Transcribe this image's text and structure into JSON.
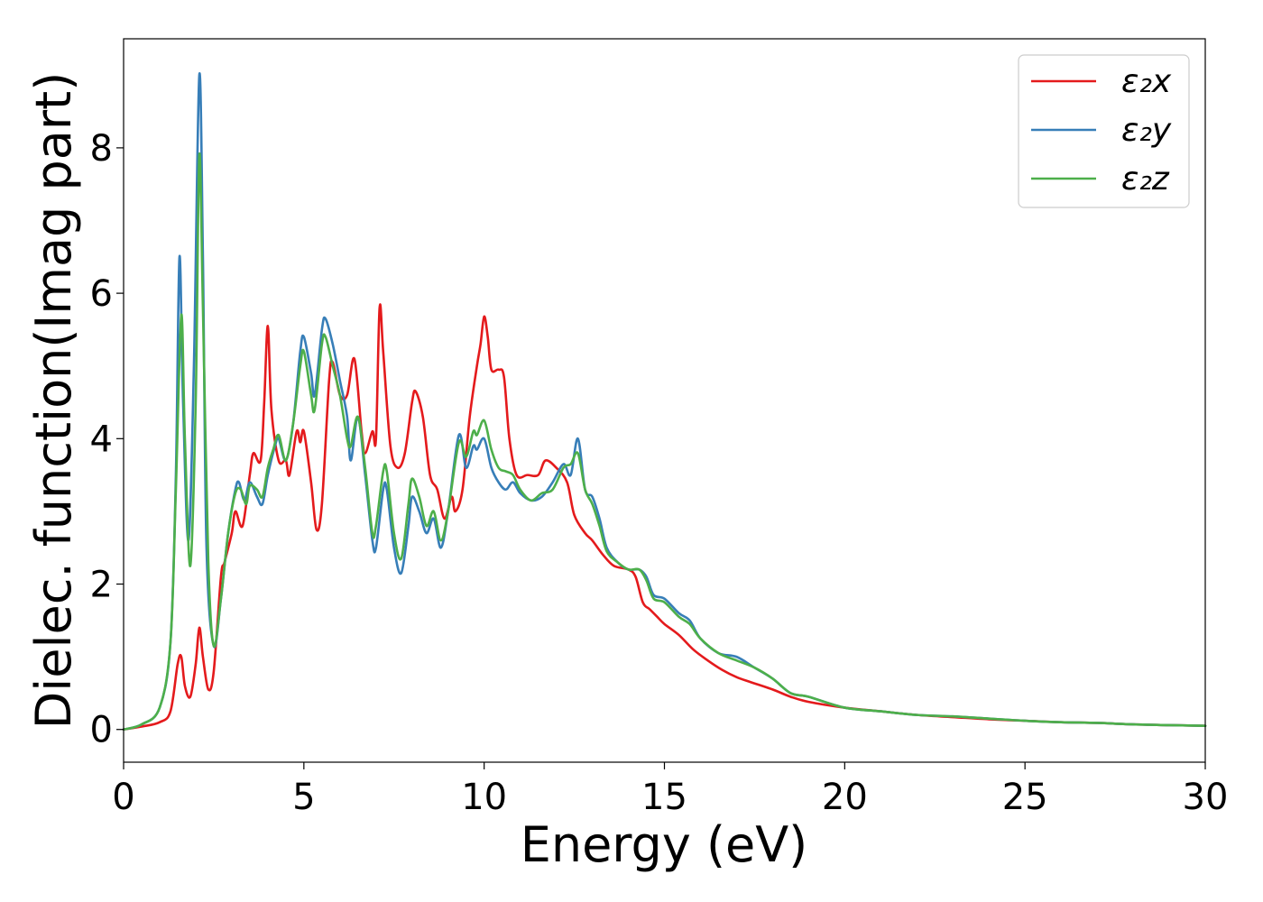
{
  "chart_data": {
    "type": "line",
    "title": "",
    "xlabel": "Energy (eV)",
    "ylabel": "Dielec. function(Imag part)",
    "xlim": [
      0,
      30
    ],
    "ylim": [
      -0.45,
      9.5
    ],
    "xticks": [
      0,
      5,
      10,
      15,
      20,
      25,
      30
    ],
    "yticks": [
      0,
      2,
      4,
      6,
      8
    ],
    "xtick_labels": [
      "0",
      "5",
      "10",
      "15",
      "20",
      "25",
      "30"
    ],
    "ytick_labels": [
      "0",
      "2",
      "4",
      "6",
      "8"
    ],
    "grid": false,
    "legend_position": "top-right",
    "series": [
      {
        "name": "ε₂x",
        "color": "#e41a1c",
        "points": [
          [
            0,
            0
          ],
          [
            0.5,
            0.04
          ],
          [
            1.0,
            0.1
          ],
          [
            1.3,
            0.25
          ],
          [
            1.5,
            0.9
          ],
          [
            1.6,
            1.0
          ],
          [
            1.7,
            0.6
          ],
          [
            1.85,
            0.45
          ],
          [
            2.0,
            0.9
          ],
          [
            2.1,
            1.4
          ],
          [
            2.2,
            1.0
          ],
          [
            2.35,
            0.55
          ],
          [
            2.5,
            0.8
          ],
          [
            2.7,
            2.1
          ],
          [
            2.8,
            2.3
          ],
          [
            3.0,
            2.7
          ],
          [
            3.1,
            3.0
          ],
          [
            3.3,
            2.8
          ],
          [
            3.5,
            3.5
          ],
          [
            3.6,
            3.8
          ],
          [
            3.8,
            3.7
          ],
          [
            3.9,
            4.5
          ],
          [
            4.0,
            5.55
          ],
          [
            4.1,
            4.4
          ],
          [
            4.3,
            3.7
          ],
          [
            4.5,
            3.7
          ],
          [
            4.6,
            3.5
          ],
          [
            4.8,
            4.1
          ],
          [
            4.9,
            3.95
          ],
          [
            5.0,
            4.1
          ],
          [
            5.2,
            3.4
          ],
          [
            5.35,
            2.75
          ],
          [
            5.5,
            3.1
          ],
          [
            5.7,
            4.8
          ],
          [
            5.8,
            5.05
          ],
          [
            6.0,
            4.6
          ],
          [
            6.2,
            4.6
          ],
          [
            6.4,
            5.1
          ],
          [
            6.6,
            4.1
          ],
          [
            6.7,
            3.8
          ],
          [
            6.9,
            4.1
          ],
          [
            7.0,
            4.0
          ],
          [
            7.1,
            5.8
          ],
          [
            7.2,
            5.2
          ],
          [
            7.4,
            3.9
          ],
          [
            7.6,
            3.6
          ],
          [
            7.8,
            3.8
          ],
          [
            8.0,
            4.5
          ],
          [
            8.1,
            4.65
          ],
          [
            8.3,
            4.3
          ],
          [
            8.5,
            3.5
          ],
          [
            8.7,
            3.3
          ],
          [
            8.9,
            2.9
          ],
          [
            9.1,
            3.2
          ],
          [
            9.2,
            3.0
          ],
          [
            9.4,
            3.3
          ],
          [
            9.6,
            4.3
          ],
          [
            9.8,
            5.0
          ],
          [
            9.9,
            5.3
          ],
          [
            10.0,
            5.68
          ],
          [
            10.1,
            5.4
          ],
          [
            10.2,
            4.95
          ],
          [
            10.4,
            4.95
          ],
          [
            10.55,
            4.85
          ],
          [
            10.7,
            4.0
          ],
          [
            10.9,
            3.5
          ],
          [
            11.2,
            3.5
          ],
          [
            11.5,
            3.5
          ],
          [
            11.7,
            3.7
          ],
          [
            12.0,
            3.6
          ],
          [
            12.3,
            3.4
          ],
          [
            12.5,
            2.95
          ],
          [
            12.8,
            2.7
          ],
          [
            13.0,
            2.6
          ],
          [
            13.3,
            2.4
          ],
          [
            13.6,
            2.25
          ],
          [
            14.0,
            2.2
          ],
          [
            14.2,
            2.1
          ],
          [
            14.4,
            1.75
          ],
          [
            14.6,
            1.65
          ],
          [
            14.8,
            1.55
          ],
          [
            15.0,
            1.45
          ],
          [
            15.4,
            1.3
          ],
          [
            15.8,
            1.1
          ],
          [
            16.2,
            0.95
          ],
          [
            16.6,
            0.82
          ],
          [
            17.0,
            0.72
          ],
          [
            17.4,
            0.65
          ],
          [
            18.0,
            0.55
          ],
          [
            18.5,
            0.45
          ],
          [
            19.0,
            0.38
          ],
          [
            20.0,
            0.3
          ],
          [
            21.0,
            0.25
          ],
          [
            22.0,
            0.2
          ],
          [
            23.0,
            0.17
          ],
          [
            24.0,
            0.14
          ],
          [
            25.0,
            0.12
          ],
          [
            26.0,
            0.1
          ],
          [
            27.0,
            0.09
          ],
          [
            28.0,
            0.07
          ],
          [
            29.0,
            0.06
          ],
          [
            30.0,
            0.05
          ]
        ]
      },
      {
        "name": "ε₂y",
        "color": "#377eb8",
        "points": [
          [
            0,
            0
          ],
          [
            0.5,
            0.07
          ],
          [
            1.0,
            0.3
          ],
          [
            1.3,
            1.2
          ],
          [
            1.45,
            3.5
          ],
          [
            1.55,
            6.5
          ],
          [
            1.65,
            4.5
          ],
          [
            1.8,
            2.6
          ],
          [
            1.95,
            5.0
          ],
          [
            2.1,
            9.0
          ],
          [
            2.2,
            6.5
          ],
          [
            2.3,
            2.5
          ],
          [
            2.5,
            1.15
          ],
          [
            2.7,
            1.8
          ],
          [
            2.9,
            2.7
          ],
          [
            3.1,
            3.3
          ],
          [
            3.2,
            3.4
          ],
          [
            3.35,
            3.15
          ],
          [
            3.5,
            3.4
          ],
          [
            3.7,
            3.2
          ],
          [
            3.85,
            3.1
          ],
          [
            4.0,
            3.5
          ],
          [
            4.2,
            3.9
          ],
          [
            4.3,
            4.0
          ],
          [
            4.5,
            3.7
          ],
          [
            4.7,
            4.2
          ],
          [
            4.9,
            5.2
          ],
          [
            5.0,
            5.4
          ],
          [
            5.2,
            4.9
          ],
          [
            5.3,
            4.6
          ],
          [
            5.5,
            5.5
          ],
          [
            5.6,
            5.65
          ],
          [
            5.8,
            5.3
          ],
          [
            6.0,
            4.8
          ],
          [
            6.2,
            4.3
          ],
          [
            6.3,
            3.7
          ],
          [
            6.5,
            4.3
          ],
          [
            6.7,
            3.5
          ],
          [
            6.9,
            2.6
          ],
          [
            7.0,
            2.5
          ],
          [
            7.2,
            3.3
          ],
          [
            7.3,
            3.3
          ],
          [
            7.5,
            2.5
          ],
          [
            7.7,
            2.15
          ],
          [
            7.9,
            2.8
          ],
          [
            8.0,
            3.2
          ],
          [
            8.2,
            3.0
          ],
          [
            8.4,
            2.7
          ],
          [
            8.6,
            2.9
          ],
          [
            8.8,
            2.5
          ],
          [
            9.0,
            3.0
          ],
          [
            9.3,
            4.05
          ],
          [
            9.5,
            3.6
          ],
          [
            9.7,
            3.9
          ],
          [
            9.8,
            3.85
          ],
          [
            10.0,
            4.0
          ],
          [
            10.2,
            3.6
          ],
          [
            10.4,
            3.4
          ],
          [
            10.6,
            3.3
          ],
          [
            10.8,
            3.4
          ],
          [
            11.0,
            3.25
          ],
          [
            11.3,
            3.15
          ],
          [
            11.6,
            3.2
          ],
          [
            11.9,
            3.4
          ],
          [
            12.2,
            3.65
          ],
          [
            12.4,
            3.5
          ],
          [
            12.6,
            4.0
          ],
          [
            12.8,
            3.3
          ],
          [
            13.0,
            3.2
          ],
          [
            13.2,
            2.9
          ],
          [
            13.4,
            2.5
          ],
          [
            13.7,
            2.3
          ],
          [
            14.0,
            2.2
          ],
          [
            14.3,
            2.2
          ],
          [
            14.5,
            2.1
          ],
          [
            14.7,
            1.85
          ],
          [
            15.0,
            1.8
          ],
          [
            15.4,
            1.6
          ],
          [
            15.7,
            1.5
          ],
          [
            16.0,
            1.25
          ],
          [
            16.5,
            1.05
          ],
          [
            17.0,
            1.0
          ],
          [
            17.5,
            0.85
          ],
          [
            18.0,
            0.7
          ],
          [
            18.5,
            0.5
          ],
          [
            19.0,
            0.45
          ],
          [
            20.0,
            0.3
          ],
          [
            21.0,
            0.25
          ],
          [
            22.0,
            0.2
          ],
          [
            23.0,
            0.18
          ],
          [
            24.0,
            0.15
          ],
          [
            25.0,
            0.12
          ],
          [
            26.0,
            0.1
          ],
          [
            27.0,
            0.09
          ],
          [
            28.0,
            0.07
          ],
          [
            29.0,
            0.06
          ],
          [
            30.0,
            0.05
          ]
        ]
      },
      {
        "name": "ε₂z",
        "color": "#4daf4a",
        "points": [
          [
            0,
            0
          ],
          [
            0.5,
            0.07
          ],
          [
            1.0,
            0.3
          ],
          [
            1.3,
            1.2
          ],
          [
            1.45,
            3.3
          ],
          [
            1.6,
            5.7
          ],
          [
            1.7,
            4.0
          ],
          [
            1.85,
            2.25
          ],
          [
            2.0,
            4.5
          ],
          [
            2.1,
            7.9
          ],
          [
            2.2,
            5.8
          ],
          [
            2.35,
            2.3
          ],
          [
            2.5,
            1.15
          ],
          [
            2.7,
            1.8
          ],
          [
            2.9,
            2.7
          ],
          [
            3.1,
            3.25
          ],
          [
            3.25,
            3.3
          ],
          [
            3.4,
            3.1
          ],
          [
            3.5,
            3.35
          ],
          [
            3.7,
            3.3
          ],
          [
            3.85,
            3.2
          ],
          [
            4.0,
            3.6
          ],
          [
            4.15,
            3.85
          ],
          [
            4.3,
            4.05
          ],
          [
            4.5,
            3.7
          ],
          [
            4.7,
            4.2
          ],
          [
            4.9,
            5.0
          ],
          [
            5.0,
            5.2
          ],
          [
            5.2,
            4.6
          ],
          [
            5.3,
            4.4
          ],
          [
            5.5,
            5.3
          ],
          [
            5.6,
            5.4
          ],
          [
            5.8,
            5.0
          ],
          [
            6.0,
            4.6
          ],
          [
            6.2,
            4.0
          ],
          [
            6.3,
            3.9
          ],
          [
            6.5,
            4.3
          ],
          [
            6.7,
            3.6
          ],
          [
            6.9,
            2.7
          ],
          [
            7.0,
            2.8
          ],
          [
            7.2,
            3.55
          ],
          [
            7.3,
            3.55
          ],
          [
            7.5,
            2.7
          ],
          [
            7.7,
            2.35
          ],
          [
            7.9,
            3.1
          ],
          [
            8.0,
            3.45
          ],
          [
            8.2,
            3.2
          ],
          [
            8.4,
            2.8
          ],
          [
            8.6,
            3.0
          ],
          [
            8.8,
            2.6
          ],
          [
            9.0,
            3.0
          ],
          [
            9.3,
            3.95
          ],
          [
            9.5,
            3.75
          ],
          [
            9.7,
            4.1
          ],
          [
            9.8,
            4.05
          ],
          [
            10.0,
            4.25
          ],
          [
            10.2,
            3.85
          ],
          [
            10.4,
            3.6
          ],
          [
            10.6,
            3.55
          ],
          [
            10.8,
            3.5
          ],
          [
            11.0,
            3.3
          ],
          [
            11.3,
            3.15
          ],
          [
            11.6,
            3.25
          ],
          [
            11.9,
            3.3
          ],
          [
            12.2,
            3.6
          ],
          [
            12.4,
            3.65
          ],
          [
            12.6,
            3.8
          ],
          [
            12.8,
            3.3
          ],
          [
            13.0,
            3.1
          ],
          [
            13.2,
            2.8
          ],
          [
            13.4,
            2.45
          ],
          [
            13.7,
            2.3
          ],
          [
            14.0,
            2.2
          ],
          [
            14.3,
            2.2
          ],
          [
            14.5,
            2.05
          ],
          [
            14.7,
            1.8
          ],
          [
            15.0,
            1.75
          ],
          [
            15.4,
            1.55
          ],
          [
            15.7,
            1.45
          ],
          [
            16.0,
            1.25
          ],
          [
            16.5,
            1.05
          ],
          [
            17.0,
            0.95
          ],
          [
            17.5,
            0.85
          ],
          [
            18.0,
            0.7
          ],
          [
            18.5,
            0.5
          ],
          [
            19.0,
            0.45
          ],
          [
            20.0,
            0.3
          ],
          [
            21.0,
            0.25
          ],
          [
            22.0,
            0.2
          ],
          [
            23.0,
            0.18
          ],
          [
            24.0,
            0.15
          ],
          [
            25.0,
            0.12
          ],
          [
            26.0,
            0.1
          ],
          [
            27.0,
            0.09
          ],
          [
            28.0,
            0.07
          ],
          [
            29.0,
            0.06
          ],
          [
            30.0,
            0.05
          ]
        ]
      }
    ]
  }
}
